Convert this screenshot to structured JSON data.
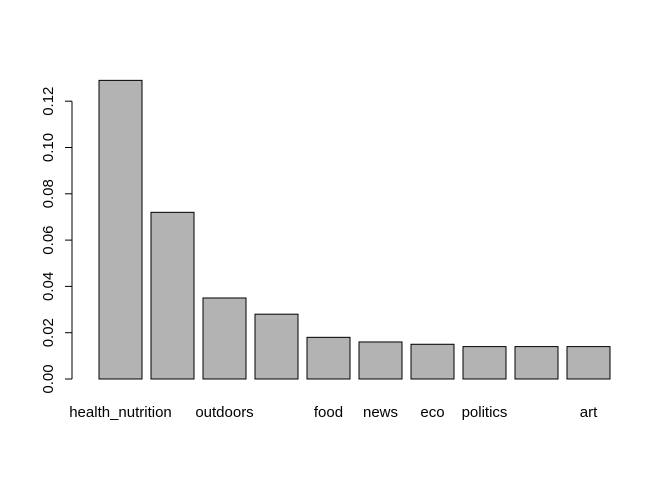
{
  "chart_data": {
    "type": "bar",
    "title": "",
    "xlabel": "",
    "ylabel": "",
    "ylim": [
      0,
      0.13
    ],
    "yticks": [
      "0.00",
      "0.02",
      "0.04",
      "0.06",
      "0.08",
      "0.10",
      "0.12"
    ],
    "grid": false,
    "bar_color": "#b3b3b3",
    "categories": [
      "health_nutrition",
      "",
      "outdoors",
      "",
      "food",
      "news",
      "eco",
      "politics",
      "",
      "art"
    ],
    "values": [
      0.129,
      0.072,
      0.035,
      0.028,
      0.018,
      0.016,
      0.015,
      0.014,
      0.014,
      0.014
    ]
  }
}
